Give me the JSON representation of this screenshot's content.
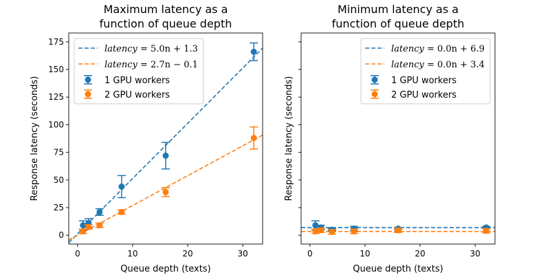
{
  "figure": {
    "background": "#ffffff"
  },
  "chart_data": [
    {
      "type": "scatter",
      "title": "Maximum latency as a\nfunction of queue depth",
      "xlabel": "Queue depth (texts)",
      "ylabel": "Response latency (seconds)",
      "xlim": [
        -1.6,
        33.6
      ],
      "ylim": [
        -8.0,
        183.0
      ],
      "xticks": [
        0,
        10,
        20,
        30
      ],
      "yticks": [
        0,
        25,
        50,
        75,
        100,
        125,
        150,
        175
      ],
      "show_ytick_labels": true,
      "grid": false,
      "legend_position": "upper-left",
      "series": [
        {
          "name": "1 GPU workers",
          "color": "#1f77b4",
          "marker": "circle",
          "x": [
            1,
            2,
            4,
            8,
            16,
            32
          ],
          "y": [
            9,
            11,
            21,
            44,
            72,
            166
          ],
          "err": [
            4,
            4,
            3,
            10,
            12,
            8
          ]
        },
        {
          "name": "2 GPU workers",
          "color": "#ff7f0e",
          "marker": "circle",
          "x": [
            1,
            2,
            4,
            8,
            16,
            32
          ],
          "y": [
            3.5,
            7.5,
            9,
            21,
            39,
            88
          ],
          "err": [
            2,
            2,
            2,
            2,
            4,
            10
          ]
        }
      ],
      "fit_lines": [
        {
          "label": "latency = 5.0n + 1.3",
          "lhs": "latency",
          "rhs": " = 5.0n + 1.3",
          "slope": 5.0,
          "intercept": 1.3,
          "color": "#1f77b4"
        },
        {
          "label": "latency = 2.7n − 0.1",
          "lhs": "latency",
          "rhs": " = 2.7n − 0.1",
          "slope": 2.7,
          "intercept": -0.1,
          "color": "#ff7f0e"
        }
      ]
    },
    {
      "type": "scatter",
      "title": "Minimum latency as a\nfunction of queue depth",
      "xlabel": "Queue depth (texts)",
      "ylabel": "Response latency (seconds)",
      "xlim": [
        -1.6,
        33.6
      ],
      "ylim": [
        -8.0,
        183.0
      ],
      "xticks": [
        0,
        10,
        20,
        30
      ],
      "yticks": [
        0,
        25,
        50,
        75,
        100,
        125,
        150,
        175
      ],
      "show_ytick_labels": false,
      "grid": false,
      "legend_position": "upper-right",
      "series": [
        {
          "name": "1 GPU workers",
          "color": "#1f77b4",
          "marker": "circle",
          "x": [
            1,
            2,
            4,
            8,
            16,
            32
          ],
          "y": [
            9,
            7,
            5,
            6,
            6,
            7
          ],
          "err": [
            4,
            2,
            1,
            2,
            1,
            1
          ]
        },
        {
          "name": "2 GPU workers",
          "color": "#ff7f0e",
          "marker": "circle",
          "x": [
            1,
            2,
            4,
            8,
            16,
            32
          ],
          "y": [
            3.5,
            4.5,
            3,
            3.5,
            4.5,
            4
          ],
          "err": [
            2,
            2,
            2,
            2,
            2,
            2
          ]
        }
      ],
      "fit_lines": [
        {
          "label": "latency = 0.0n + 6.9",
          "lhs": "latency",
          "rhs": " = 0.0n + 6.9",
          "slope": 0.0,
          "intercept": 6.9,
          "color": "#1f77b4"
        },
        {
          "label": "latency = 0.0n + 3.4",
          "lhs": "latency",
          "rhs": " = 0.0n + 3.4",
          "slope": 0.0,
          "intercept": 3.4,
          "color": "#ff7f0e"
        }
      ]
    }
  ]
}
